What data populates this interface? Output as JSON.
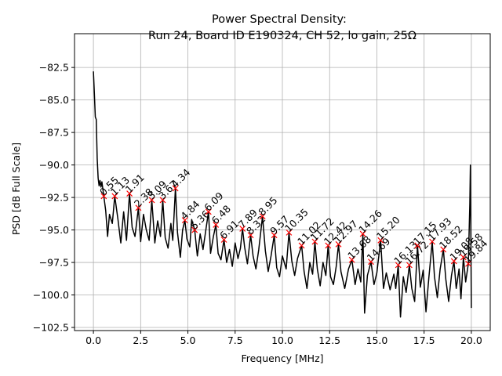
{
  "chart_data": {
    "type": "line",
    "title": "Power Spectral Density:",
    "subtitle": "Run 24, Board ID E190324, CH 52, lo gain, 25Ω",
    "x_label": "Frequency [MHz]",
    "y_label": "PSD [dB Full Scale]",
    "xlim": [
      -1,
      21
    ],
    "ylim": [
      -102.74,
      -79.9
    ],
    "xticks": [
      {
        "value": 0,
        "label": "0.0"
      },
      {
        "value": 2.5,
        "label": "2.5"
      },
      {
        "value": 5,
        "label": "5.0"
      },
      {
        "value": 7.5,
        "label": "7.5"
      },
      {
        "value": 10,
        "label": "10.0"
      },
      {
        "value": 12.5,
        "label": "12.5"
      },
      {
        "value": 15,
        "label": "15.0"
      },
      {
        "value": 17.5,
        "label": "17.5"
      },
      {
        "value": 20,
        "label": "20.0"
      }
    ],
    "yticks": [
      {
        "value": -82.5,
        "label": "−82.5"
      },
      {
        "value": -85,
        "label": "−85.0"
      },
      {
        "value": -87.5,
        "label": "−87.5"
      },
      {
        "value": -90,
        "label": "−90.0"
      },
      {
        "value": -92.5,
        "label": "−92.5"
      },
      {
        "value": -95,
        "label": "−95.0"
      },
      {
        "value": -97.5,
        "label": "−97.5"
      },
      {
        "value": -100,
        "label": "−100.0"
      },
      {
        "value": -102.5,
        "label": "−102.5"
      }
    ],
    "grid": true,
    "series": [
      {
        "color": "#000000",
        "x": [
          0.0,
          0.05,
          0.1,
          0.15,
          0.2,
          0.25,
          0.3,
          0.35,
          0.4,
          0.45,
          0.55,
          0.65,
          0.75,
          0.85,
          1.0,
          1.13,
          1.3,
          1.45,
          1.6,
          1.75,
          1.91,
          2.05,
          2.2,
          2.38,
          2.5,
          2.65,
          2.8,
          2.95,
          3.09,
          3.25,
          3.4,
          3.55,
          3.67,
          3.8,
          3.95,
          4.1,
          4.2,
          4.34,
          4.45,
          4.6,
          4.72,
          4.84,
          4.95,
          5.1,
          5.2,
          5.36,
          5.5,
          5.65,
          5.8,
          5.95,
          6.09,
          6.2,
          6.35,
          6.48,
          6.6,
          6.75,
          6.91,
          7.05,
          7.2,
          7.35,
          7.5,
          7.65,
          7.78,
          7.89,
          8.0,
          8.15,
          8.32,
          8.45,
          8.6,
          8.75,
          8.95,
          9.1,
          9.25,
          9.4,
          9.57,
          9.7,
          9.85,
          10.0,
          10.2,
          10.35,
          10.5,
          10.65,
          10.8,
          11.02,
          11.15,
          11.3,
          11.45,
          11.6,
          11.72,
          11.85,
          12.0,
          12.15,
          12.3,
          12.42,
          12.55,
          12.7,
          12.85,
          12.97,
          13.1,
          13.3,
          13.5,
          13.68,
          13.85,
          14.0,
          14.15,
          14.26,
          14.35,
          14.5,
          14.69,
          14.85,
          15.0,
          15.2,
          15.35,
          15.5,
          15.7,
          15.9,
          16.0,
          16.13,
          16.25,
          16.4,
          16.55,
          16.72,
          16.85,
          17.0,
          17.15,
          17.3,
          17.45,
          17.6,
          17.75,
          17.93,
          18.05,
          18.2,
          18.35,
          18.52,
          18.65,
          18.8,
          18.95,
          19.08,
          19.2,
          19.35,
          19.45,
          19.58,
          19.7,
          19.84,
          19.92,
          19.95,
          20.0
        ],
        "values": [
          -82.8,
          -84.5,
          -86.3,
          -86.5,
          -89.5,
          -91.0,
          -91.6,
          -91.2,
          -91.7,
          -91.3,
          -92.4,
          -93.5,
          -95.5,
          -93.8,
          -94.5,
          -92.4,
          -94.2,
          -96.0,
          -93.6,
          -95.8,
          -92.2,
          -94.8,
          -95.5,
          -93.3,
          -95.9,
          -93.8,
          -95.0,
          -95.8,
          -92.7,
          -96.0,
          -94.3,
          -95.5,
          -92.7,
          -95.6,
          -96.4,
          -94.5,
          -95.8,
          -91.8,
          -95.2,
          -97.1,
          -95.0,
          -94.25,
          -95.7,
          -96.3,
          -94.2,
          -95.0,
          -97.0,
          -95.3,
          -96.5,
          -95.0,
          -93.6,
          -96.8,
          -95.5,
          -94.6,
          -96.8,
          -97.3,
          -95.75,
          -97.5,
          -96.5,
          -97.8,
          -96.0,
          -97.2,
          -96.4,
          -94.9,
          -96.3,
          -97.6,
          -95.4,
          -97.0,
          -98.0,
          -96.5,
          -93.95,
          -96.6,
          -98.2,
          -97.0,
          -95.4,
          -97.9,
          -98.6,
          -97.0,
          -98.0,
          -95.2,
          -97.4,
          -98.5,
          -97.2,
          -96.2,
          -98.2,
          -99.5,
          -97.5,
          -98.4,
          -95.9,
          -98.0,
          -99.3,
          -97.5,
          -98.5,
          -96.2,
          -98.6,
          -99.2,
          -97.8,
          -96.1,
          -98.2,
          -99.5,
          -98.0,
          -97.3,
          -99.2,
          -98.0,
          -99.0,
          -95.3,
          -101.4,
          -98.5,
          -97.45,
          -99.2,
          -98.3,
          -95.8,
          -99.5,
          -98.3,
          -99.6,
          -98.4,
          -99.5,
          -97.7,
          -101.7,
          -98.6,
          -99.8,
          -97.7,
          -99.5,
          -100.5,
          -96.2,
          -99.4,
          -98.1,
          -101.3,
          -98.7,
          -95.9,
          -98.6,
          -100.2,
          -98.0,
          -96.5,
          -98.8,
          -100.5,
          -98.5,
          -97.4,
          -99.5,
          -98.0,
          -100.3,
          -97.1,
          -99.0,
          -97.6,
          -93.0,
          -90.0,
          -101.0
        ]
      }
    ],
    "peaks": {
      "color": "#ff0000",
      "x": [
        0.55,
        1.13,
        1.91,
        2.38,
        3.09,
        3.67,
        4.34,
        4.84,
        5.36,
        6.09,
        6.48,
        6.91,
        7.89,
        8.32,
        8.95,
        9.57,
        10.35,
        11.02,
        11.72,
        12.42,
        12.97,
        13.68,
        14.26,
        14.69,
        15.2,
        16.13,
        16.72,
        17.15,
        17.93,
        18.52,
        19.08,
        19.58,
        19.84
      ],
      "values": [
        -92.4,
        -92.4,
        -92.2,
        -93.3,
        -92.7,
        -92.7,
        -91.8,
        -94.25,
        -95.0,
        -93.6,
        -94.6,
        -95.75,
        -94.9,
        -95.4,
        -93.95,
        -95.4,
        -95.2,
        -96.2,
        -95.9,
        -96.2,
        -96.1,
        -97.3,
        -95.3,
        -97.45,
        -95.8,
        -97.7,
        -97.7,
        -96.2,
        -95.9,
        -96.5,
        -97.4,
        -97.1,
        -97.6
      ],
      "labels": [
        "0.55",
        "1.13",
        "1.91",
        "2.38",
        "3.09",
        "3.67",
        "4.34",
        "4.84",
        "5.36",
        "6.09",
        "6.48",
        "6.91",
        "7.89",
        "8.32",
        "8.95",
        "9.57",
        "10.35",
        "11.02",
        "11.72",
        "12.42",
        "12.97",
        "13.68",
        "14.26",
        "14.69",
        "15.20",
        "16.13",
        "16.72",
        "17.15",
        "17.93",
        "18.52",
        "19.08",
        "19.58",
        "19.84"
      ]
    }
  }
}
